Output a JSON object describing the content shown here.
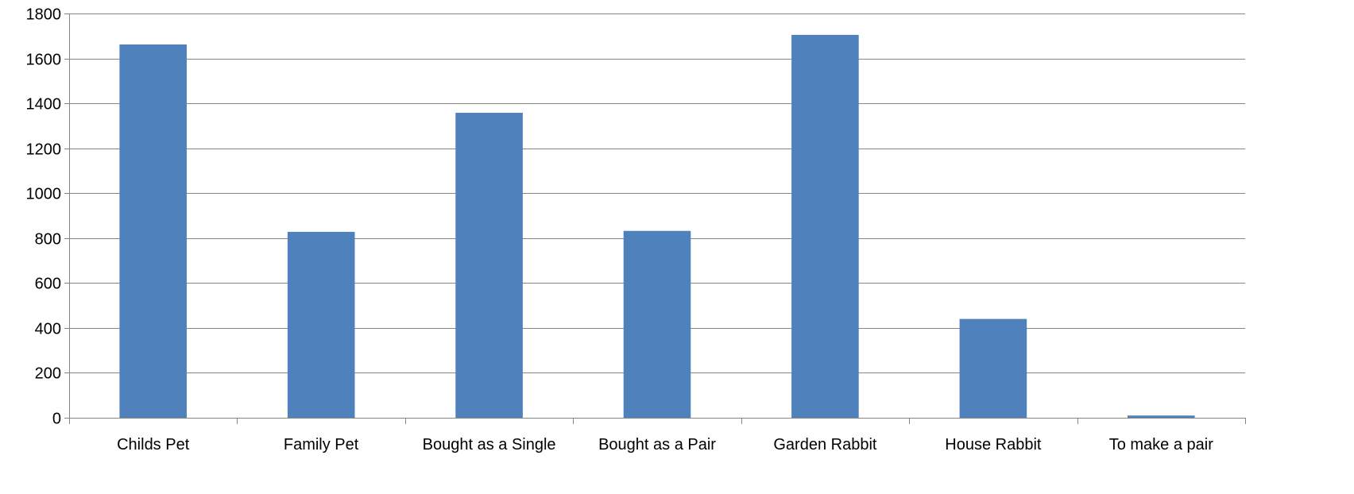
{
  "chart_data": {
    "type": "bar",
    "title": "",
    "xlabel": "",
    "ylabel": "",
    "categories": [
      "Childs Pet",
      "Family Pet",
      "Bought as a Single",
      "Bought as a Pair",
      "Garden Rabbit",
      "House Rabbit",
      "To make a pair"
    ],
    "values": [
      1662,
      828,
      1358,
      832,
      1705,
      440,
      10
    ],
    "ylim": [
      0,
      1800
    ],
    "yticks": [
      0,
      200,
      400,
      600,
      800,
      1000,
      1200,
      1400,
      1600,
      1800
    ],
    "grid": true,
    "legend": "none",
    "bar_color": "#4f81bd"
  }
}
